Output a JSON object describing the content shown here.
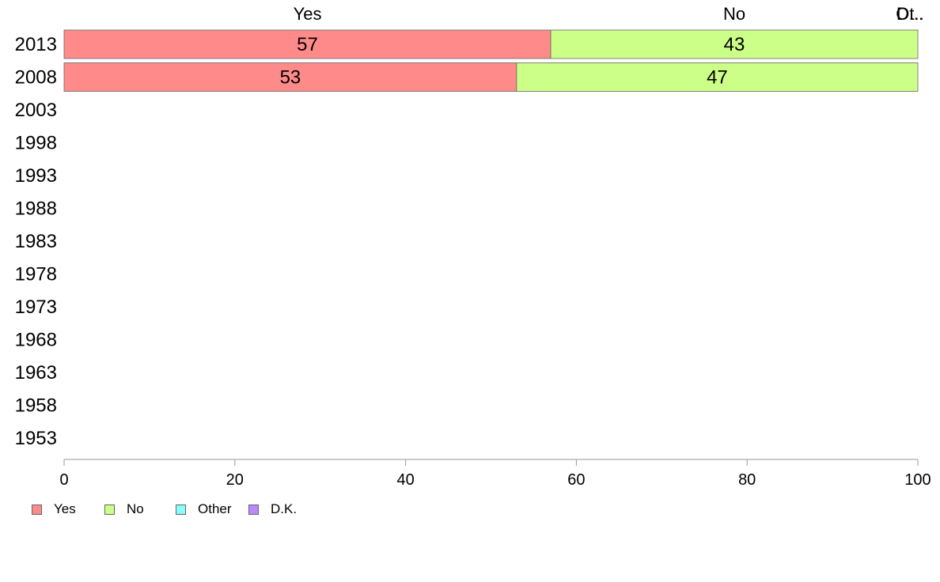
{
  "chart_data": {
    "type": "bar",
    "orientation": "horizontal",
    "stacked": true,
    "categories": [
      "2013",
      "2008",
      "2003",
      "1998",
      "1993",
      "1988",
      "1983",
      "1978",
      "1973",
      "1968",
      "1963",
      "1958",
      "1953"
    ],
    "series": [
      {
        "name": "Yes",
        "color": "#FF8A8A",
        "values": [
          57,
          53,
          null,
          null,
          null,
          null,
          null,
          null,
          null,
          null,
          null,
          null,
          null
        ]
      },
      {
        "name": "No",
        "color": "#CCFF88",
        "values": [
          43,
          47,
          null,
          null,
          null,
          null,
          null,
          null,
          null,
          null,
          null,
          null,
          null
        ]
      },
      {
        "name": "Other",
        "color": "#88FFFF",
        "values": [
          0,
          0,
          null,
          null,
          null,
          null,
          null,
          null,
          null,
          null,
          null,
          null,
          null
        ]
      },
      {
        "name": "D.K.",
        "color": "#BB88FF",
        "values": [
          0,
          0,
          null,
          null,
          null,
          null,
          null,
          null,
          null,
          null,
          null,
          null,
          null
        ]
      }
    ],
    "top_labels": [
      "Yes",
      "No",
      "Ot..",
      "D..."
    ],
    "xlim": [
      0,
      100
    ],
    "xticks": [
      0,
      20,
      40,
      60,
      80,
      100
    ],
    "legend_position": "bottom-left",
    "grid": false
  },
  "legend": {
    "items": [
      {
        "label": "Yes",
        "color": "#FF8A8A"
      },
      {
        "label": "No",
        "color": "#CCFF88"
      },
      {
        "label": "Other",
        "color": "#88FFFF"
      },
      {
        "label": "D.K.",
        "color": "#BB88FF"
      }
    ]
  }
}
